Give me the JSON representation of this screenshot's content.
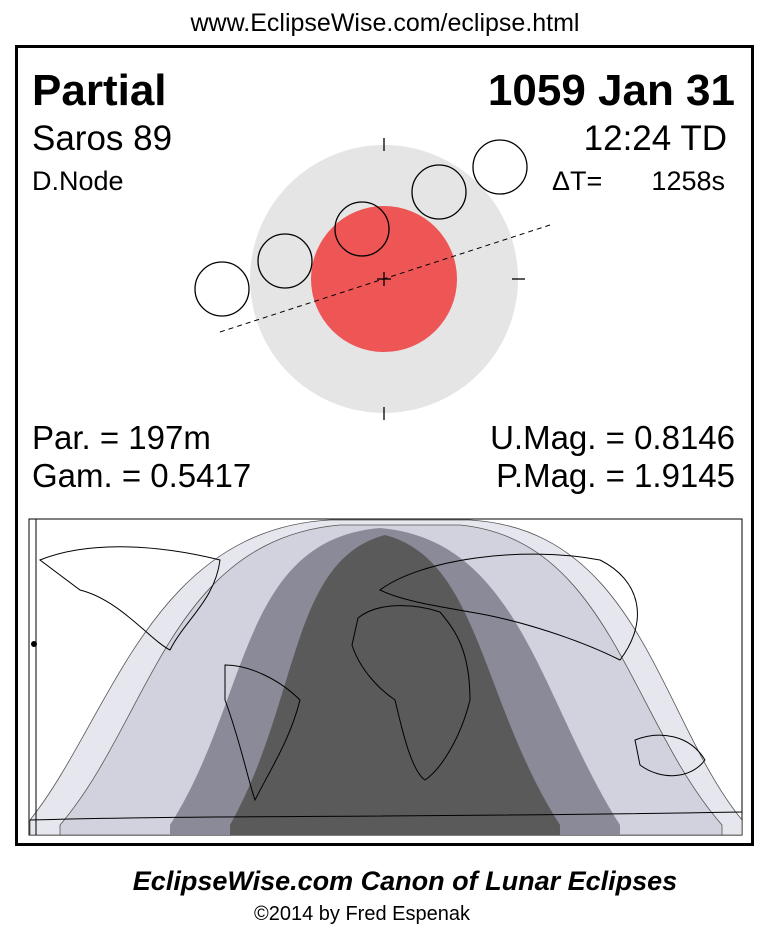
{
  "header": {
    "url": "www.EclipseWise.com/eclipse.html"
  },
  "panel": {
    "title": "Partial",
    "date": "1059 Jan 31",
    "saros": "Saros  89",
    "time": "12:24 TD",
    "node": "D.Node",
    "delta_t_label": "ΔT=",
    "delta_t_value": "1258s"
  },
  "parameters": {
    "duration": "Par. = 197m",
    "gamma": "Gam. = 0.5417",
    "umbral_mag": "U.Mag. = 0.8146",
    "penumbral_mag": "P.Mag. = 1.9145"
  },
  "footer": {
    "title": "EclipseWise.com Canon of Lunar Eclipses",
    "copyright": "©2014 by Fred Espenak"
  }
}
